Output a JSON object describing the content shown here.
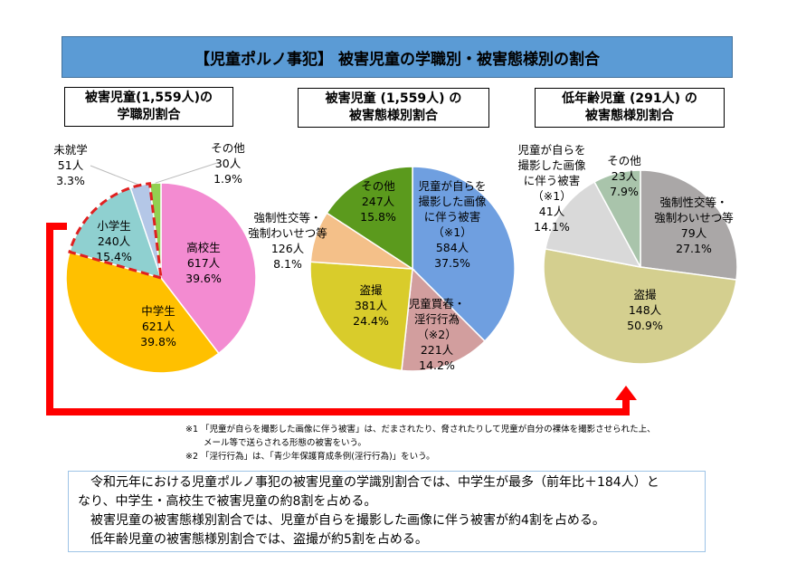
{
  "banner": "【児童ポルノ事犯】 被害児童の学職別・被害態様別の割合",
  "chart_data": [
    {
      "type": "pie",
      "title_lines": [
        "被害児童(1,559人)の",
        "学職別割合"
      ],
      "start": "top",
      "direction": "clockwise",
      "slices": [
        {
          "label": "高校生",
          "count": "617人",
          "percent": 39.6,
          "percent_label": "39.6%",
          "color": "#f38bd1"
        },
        {
          "label": "中学生",
          "count": "621人",
          "percent": 39.8,
          "percent_label": "39.8%",
          "color": "#ffc000"
        },
        {
          "label": "小学生",
          "count": "240人",
          "percent": 15.4,
          "percent_label": "15.4%",
          "color": "#8fd0d0"
        },
        {
          "label": "未就学",
          "count": "51人",
          "percent": 3.3,
          "percent_label": "3.3%",
          "color": "#b4c7e7"
        },
        {
          "label": "その他",
          "count": "30人",
          "percent": 1.9,
          "percent_label": "1.9%",
          "color": "#92d050"
        }
      ],
      "highlight": "小学生・未就学 (red dashed outline)"
    },
    {
      "type": "pie",
      "title_lines": [
        "被害児童 (1,559人) の",
        "被害態様別割合"
      ],
      "start": "top",
      "direction": "clockwise",
      "slices": [
        {
          "label": "児童が自らを撮影した画像に伴う被害（※1）",
          "label_lines": [
            "児童が自らを",
            "撮影した画像",
            "に伴う被害",
            "（※1）"
          ],
          "count": "584人",
          "percent": 37.5,
          "percent_label": "37.5%",
          "color": "#6f9fe0"
        },
        {
          "label": "児童買春・淫行行為（※2）",
          "label_lines": [
            "児童買春・",
            "淫行行為",
            "（※2）"
          ],
          "count": "221人",
          "percent": 14.2,
          "percent_label": "14.2%",
          "color": "#d29e9e"
        },
        {
          "label": "盗撮",
          "label_lines": [
            "盗撮"
          ],
          "count": "381人",
          "percent": 24.4,
          "percent_label": "24.4%",
          "color": "#d9cc2b"
        },
        {
          "label": "強制性交等・強制わいせつ等",
          "label_lines": [
            "強制性交等・",
            "強制わいせつ等"
          ],
          "count": "126人",
          "percent": 8.1,
          "percent_label": "8.1%",
          "color": "#f4c089"
        },
        {
          "label": "その他",
          "label_lines": [
            "その他"
          ],
          "count": "247人",
          "percent": 15.8,
          "percent_label": "15.8%",
          "color": "#5b9a1d"
        }
      ]
    },
    {
      "type": "pie",
      "title_lines": [
        "低年齢児童 (291人) の",
        "被害態様別割合"
      ],
      "start": "top",
      "direction": "clockwise",
      "slices": [
        {
          "label": "強制性交等・強制わいせつ等",
          "label_lines": [
            "強制性交等・",
            "強制わいせつ等"
          ],
          "count": "79人",
          "percent": 27.1,
          "percent_label": "27.1%",
          "color": "#aaa7a7"
        },
        {
          "label": "盗撮",
          "label_lines": [
            "盗撮"
          ],
          "count": "148人",
          "percent": 50.9,
          "percent_label": "50.9%",
          "color": "#d4cf8f"
        },
        {
          "label": "児童が自らを撮影した画像に伴う被害（※1）",
          "label_lines": [
            "児童が自らを",
            "撮影した画像",
            "に伴う被害",
            "（※1）"
          ],
          "count": "41人",
          "percent": 14.1,
          "percent_label": "14.1%",
          "color": "#d9d9d9"
        },
        {
          "label": "その他",
          "label_lines": [
            "その他"
          ],
          "count": "23人",
          "percent": 7.9,
          "percent_label": "7.9%",
          "color": "#a9c4ab"
        }
      ]
    }
  ],
  "notes": {
    "n1a": "※1 「児童が自らを撮影した画像に伴う被害」は、だまされたり、脅されたりして児童が自分の裸体を撮影させられた上、",
    "n1b": "メール等で送らされる形態の被害をいう。",
    "n2": "※2 「淫行行為」は、「青少年保護育成条例(淫行行為)」をいう。"
  },
  "summary": [
    "令和元年における児童ポルノ事犯の被害児童の学識別割合では、中学生が最多（前年比＋184人）と",
    "なり、中学生・高校生で被害児童の約8割を占める。",
    "被害児童の被害態様別割合では、児童が自らを撮影した画像に伴う被害が約4割を占める。",
    "低年齢児童の被害態様別割合では、盗撮が約5割を占める。"
  ],
  "arrow_color": "#ff0000"
}
